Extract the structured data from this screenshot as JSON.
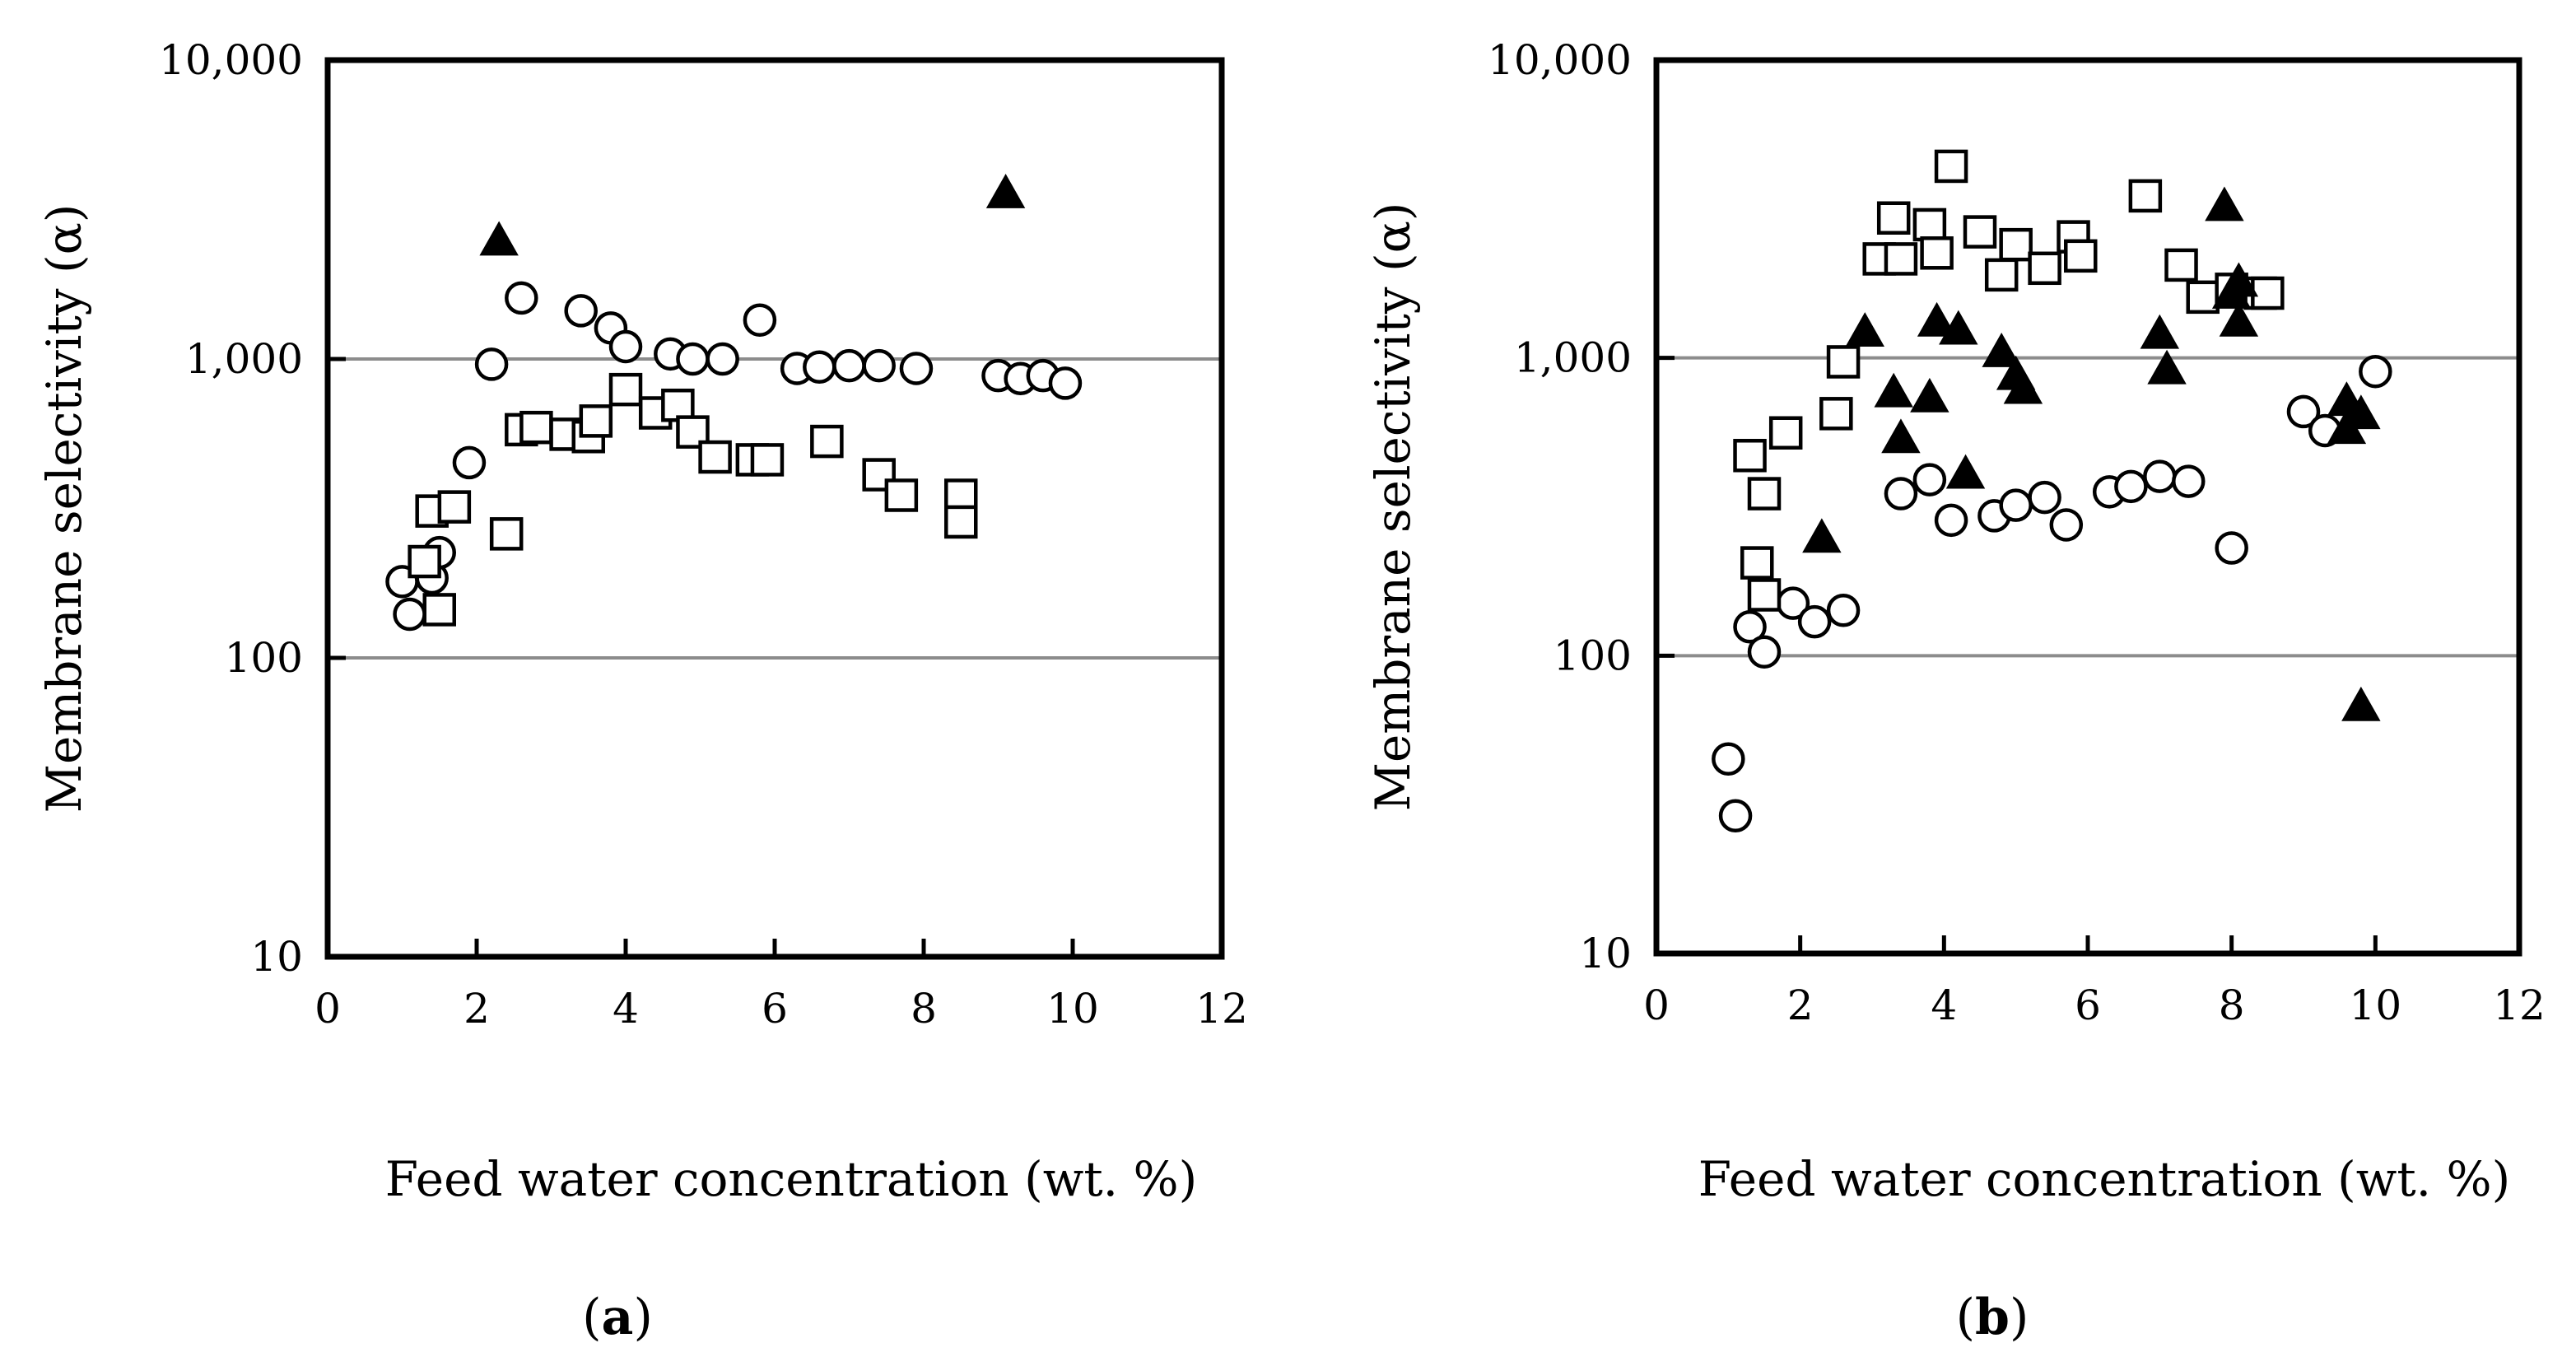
{
  "chart_data": [
    {
      "panel": "a",
      "type": "scatter",
      "panel_label": "a",
      "xlabel": "Feed water concentration (wt. %)",
      "ylabel": "Membrane selectivity (α)",
      "xlim": [
        0,
        12
      ],
      "ylim": [
        10,
        10000
      ],
      "yscale": "log",
      "xticks": [
        "0",
        "2",
        "4",
        "6",
        "8",
        "10",
        "12"
      ],
      "yticks": [
        "10",
        "100",
        "1,000",
        "10,000"
      ],
      "gridlines_y": [
        100,
        1000
      ],
      "series": [
        {
          "name": "circles",
          "marker": "circle",
          "points": [
            [
              1.0,
              180
            ],
            [
              1.1,
              140
            ],
            [
              1.4,
              185
            ],
            [
              1.5,
              225
            ],
            [
              1.9,
              450
            ],
            [
              2.2,
              960
            ],
            [
              2.6,
              1600
            ],
            [
              3.4,
              1450
            ],
            [
              3.8,
              1270
            ],
            [
              4.0,
              1100
            ],
            [
              4.6,
              1040
            ],
            [
              4.9,
              1000
            ],
            [
              5.3,
              1000
            ],
            [
              5.8,
              1350
            ],
            [
              6.3,
              930
            ],
            [
              6.6,
              940
            ],
            [
              7.0,
              950
            ],
            [
              7.4,
              950
            ],
            [
              7.9,
              930
            ],
            [
              9.0,
              880
            ],
            [
              9.3,
              860
            ],
            [
              9.6,
              880
            ],
            [
              9.9,
              830
            ]
          ]
        },
        {
          "name": "squares",
          "marker": "square",
          "points": [
            [
              1.3,
              210
            ],
            [
              1.4,
              310
            ],
            [
              1.5,
              145
            ],
            [
              1.7,
              320
            ],
            [
              2.4,
              260
            ],
            [
              2.6,
              580
            ],
            [
              2.8,
              590
            ],
            [
              3.2,
              560
            ],
            [
              3.5,
              550
            ],
            [
              3.6,
              620
            ],
            [
              4.0,
              790
            ],
            [
              4.4,
              660
            ],
            [
              4.7,
              700
            ],
            [
              4.9,
              570
            ],
            [
              5.2,
              470
            ],
            [
              5.7,
              460
            ],
            [
              5.9,
              460
            ],
            [
              6.7,
              530
            ],
            [
              7.4,
              410
            ],
            [
              7.7,
              350
            ],
            [
              8.5,
              350
            ],
            [
              8.5,
              285
            ]
          ]
        },
        {
          "name": "triangles",
          "marker": "triangle",
          "points": [
            [
              2.3,
              2500
            ],
            [
              9.1,
              3600
            ]
          ]
        }
      ]
    },
    {
      "panel": "b",
      "type": "scatter",
      "panel_label": "b",
      "xlabel": "Feed water concentration (wt. %)",
      "ylabel": "Membrane selectivity (α)",
      "xlim": [
        0,
        12
      ],
      "ylim": [
        10,
        10000
      ],
      "yscale": "log",
      "xticks": [
        "0",
        "2",
        "4",
        "6",
        "8",
        "10",
        "12"
      ],
      "yticks": [
        "10",
        "100",
        "1,000",
        "10,000"
      ],
      "gridlines_y": [
        100,
        1000
      ],
      "series": [
        {
          "name": "circles",
          "marker": "circle",
          "points": [
            [
              1.0,
              45
            ],
            [
              1.1,
              29
            ],
            [
              1.3,
              125
            ],
            [
              1.5,
              103
            ],
            [
              1.9,
              150
            ],
            [
              2.2,
              130
            ],
            [
              2.6,
              142
            ],
            [
              3.4,
              350
            ],
            [
              3.8,
              390
            ],
            [
              4.1,
              285
            ],
            [
              4.7,
              295
            ],
            [
              5.0,
              320
            ],
            [
              5.4,
              340
            ],
            [
              5.7,
              275
            ],
            [
              6.3,
              355
            ],
            [
              6.6,
              370
            ],
            [
              7.0,
              400
            ],
            [
              7.4,
              385
            ],
            [
              8.0,
              230
            ],
            [
              9.0,
              660
            ],
            [
              9.3,
              570
            ],
            [
              10.0,
              900
            ]
          ]
        },
        {
          "name": "squares",
          "marker": "square",
          "points": [
            [
              1.3,
              470
            ],
            [
              1.4,
              205
            ],
            [
              1.5,
              350
            ],
            [
              1.5,
              160
            ],
            [
              1.8,
              560
            ],
            [
              2.5,
              650
            ],
            [
              2.6,
              970
            ],
            [
              3.1,
              2150
            ],
            [
              3.3,
              2950
            ],
            [
              3.4,
              2150
            ],
            [
              3.8,
              2800
            ],
            [
              3.9,
              2250
            ],
            [
              4.1,
              4400
            ],
            [
              4.5,
              2650
            ],
            [
              4.8,
              1900
            ],
            [
              5.0,
              2400
            ],
            [
              5.4,
              2000
            ],
            [
              5.8,
              2550
            ],
            [
              5.9,
              2200
            ],
            [
              6.8,
              3500
            ],
            [
              7.3,
              2050
            ],
            [
              7.6,
              1600
            ],
            [
              8.0,
              1700
            ],
            [
              8.4,
              1650
            ],
            [
              8.5,
              1650
            ]
          ]
        },
        {
          "name": "triangles",
          "marker": "triangle",
          "points": [
            [
              2.3,
              250
            ],
            [
              2.9,
              1230
            ],
            [
              3.3,
              770
            ],
            [
              3.4,
              540
            ],
            [
              3.8,
              740
            ],
            [
              3.9,
              1330
            ],
            [
              4.2,
              1250
            ],
            [
              4.3,
              410
            ],
            [
              4.8,
              1050
            ],
            [
              5.0,
              880
            ],
            [
              5.1,
              790
            ],
            [
              7.0,
              1210
            ],
            [
              7.1,
              920
            ],
            [
              7.9,
              3250
            ],
            [
              8.0,
              1650
            ],
            [
              8.1,
              1810
            ],
            [
              8.1,
              1330
            ],
            [
              9.6,
              580
            ],
            [
              9.6,
              720
            ],
            [
              9.8,
              650
            ],
            [
              9.8,
              68
            ]
          ]
        }
      ]
    }
  ]
}
